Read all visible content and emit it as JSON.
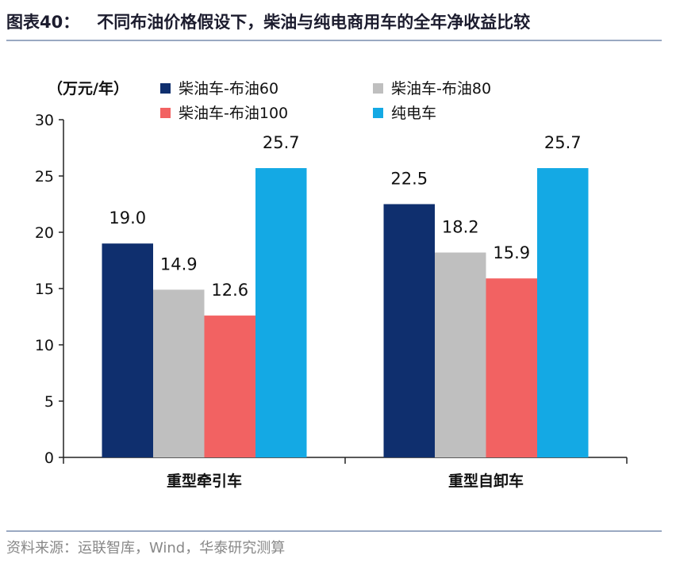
{
  "title": {
    "figure": "图表40：",
    "text": "不同布油价格假设下，柴油与纯电商用车的全年净收益比较"
  },
  "source": "资料来源：运联智库，Wind，华泰研究测算",
  "chart_data": {
    "type": "bar",
    "title": "不同布油价格假设下，柴油与纯电商用车的全年净收益比较",
    "unit": "（万元/年）",
    "ylabel": "万元/年",
    "xlabel": "",
    "ylim": [
      0,
      30
    ],
    "yticks": [
      0,
      5,
      10,
      15,
      20,
      25,
      30
    ],
    "grid": false,
    "legend_position": "top",
    "categories": [
      "重型牵引车",
      "重型自卸车"
    ],
    "series": [
      {
        "name": "柴油车-布油60",
        "color": "#0f2f6e",
        "values": [
          19.0,
          22.5
        ],
        "labels": [
          "19.0",
          "22.5"
        ]
      },
      {
        "name": "柴油车-布油80",
        "color": "#bfbfbf",
        "values": [
          14.9,
          18.2
        ],
        "labels": [
          "14.9",
          "18.2"
        ]
      },
      {
        "name": "柴油车-布油100",
        "color": "#f26262",
        "values": [
          12.6,
          15.9
        ],
        "labels": [
          "12.6",
          "15.9"
        ]
      },
      {
        "name": "纯电车",
        "color": "#14a9e4",
        "values": [
          25.7,
          25.7
        ],
        "labels": [
          "25.7",
          "25.7"
        ]
      }
    ]
  }
}
